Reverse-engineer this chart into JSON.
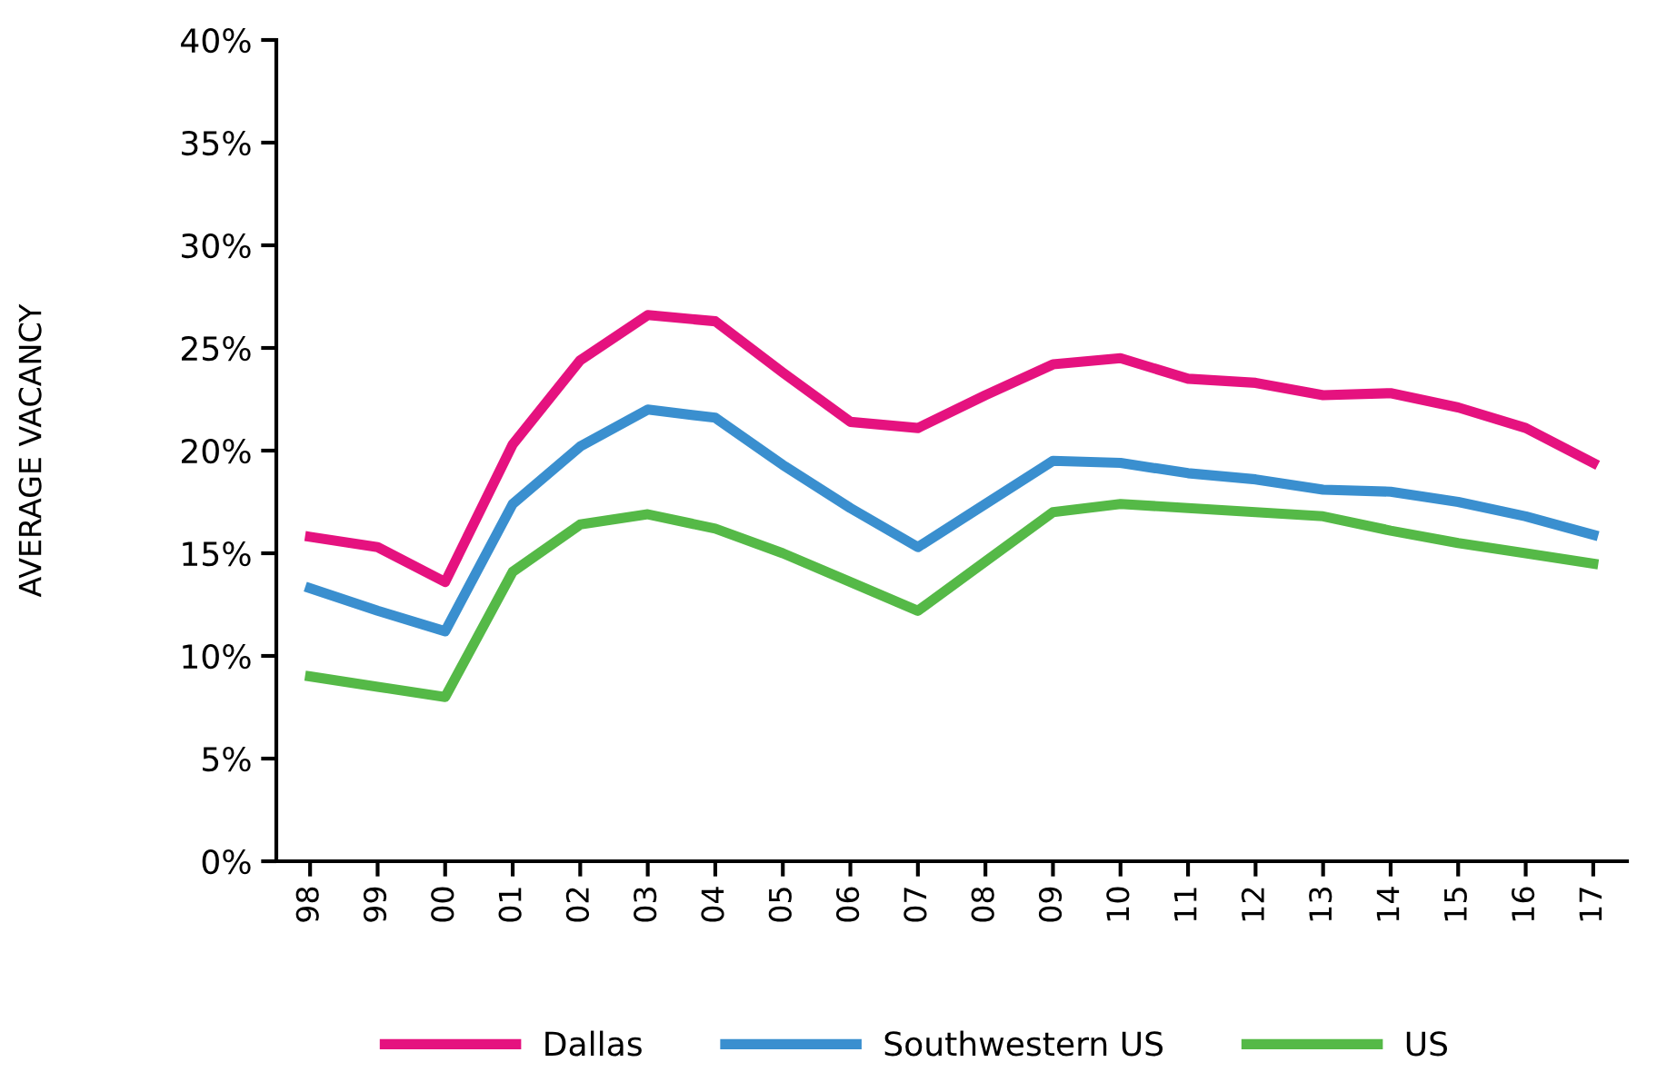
{
  "chart_data": {
    "type": "line",
    "ylabel": "AVERAGE VACANCY",
    "categories": [
      "98",
      "99",
      "00",
      "01",
      "02",
      "03",
      "04",
      "05",
      "06",
      "07",
      "08",
      "09",
      "10",
      "11",
      "12",
      "13",
      "14",
      "15",
      "16",
      "17"
    ],
    "series": [
      {
        "name": "Dallas",
        "color": "#e5127f",
        "values": [
          15.8,
          15.3,
          13.6,
          20.3,
          24.4,
          26.6,
          26.3,
          23.8,
          21.4,
          21.1,
          22.7,
          24.2,
          24.5,
          23.5,
          23.3,
          22.7,
          22.8,
          22.1,
          21.1,
          19.4
        ]
      },
      {
        "name": "Southwestern US",
        "color": "#3a8fcf",
        "values": [
          13.3,
          12.2,
          11.2,
          17.4,
          20.2,
          22.0,
          21.6,
          19.3,
          17.2,
          15.3,
          17.4,
          19.5,
          19.4,
          18.9,
          18.6,
          18.1,
          18.0,
          17.5,
          16.8,
          15.9
        ]
      },
      {
        "name": "US",
        "color": "#55b947",
        "values": [
          9.0,
          8.5,
          8.0,
          14.1,
          16.4,
          16.9,
          16.2,
          15.0,
          13.6,
          12.2,
          14.6,
          17.0,
          17.4,
          17.2,
          17.0,
          16.8,
          16.1,
          15.5,
          15.0,
          14.5
        ]
      }
    ],
    "ylim": [
      0,
      40
    ],
    "yticks": [
      {
        "value": 0,
        "label": "0%"
      },
      {
        "value": 5,
        "label": "5%"
      },
      {
        "value": 10,
        "label": "10%"
      },
      {
        "value": 15,
        "label": "15%"
      },
      {
        "value": 20,
        "label": "20%"
      },
      {
        "value": 25,
        "label": "25%"
      },
      {
        "value": 30,
        "label": "30%"
      },
      {
        "value": 35,
        "label": "35%"
      },
      {
        "value": 40,
        "label": "40%"
      }
    ],
    "grid": false,
    "legend": "bottom",
    "marker": "none",
    "line_style": "solid"
  }
}
